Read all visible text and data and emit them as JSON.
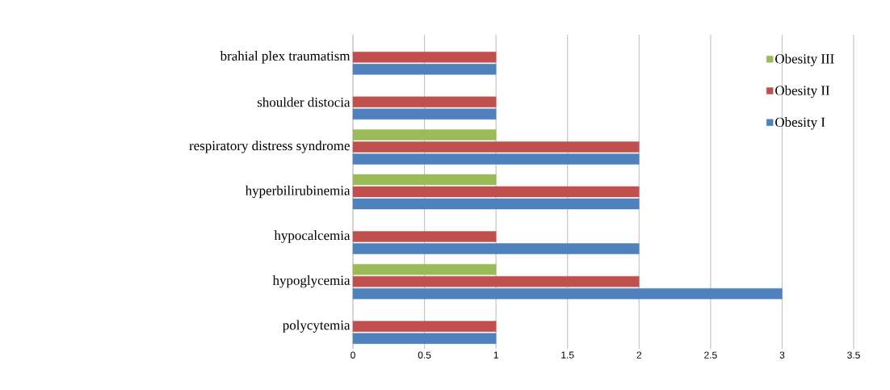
{
  "chart_data": {
    "type": "bar",
    "orientation": "horizontal",
    "categories": [
      "brahial plex traumatism",
      "shoulder distocia",
      "respiratory distress syndrome",
      "hyperbilirubinemia",
      "hypocalcemia",
      "hypoglycemia",
      "polycytemia"
    ],
    "series": [
      {
        "name": "Obesity I",
        "color": "#4f81bd",
        "values": [
          1,
          1,
          2,
          2,
          2,
          3,
          1
        ]
      },
      {
        "name": "Obesity II",
        "color": "#c0504d",
        "values": [
          1,
          1,
          2,
          2,
          1,
          2,
          1
        ]
      },
      {
        "name": "Obesity III",
        "color": "#9bbb59",
        "values": [
          null,
          null,
          1,
          1,
          null,
          1,
          null
        ]
      }
    ],
    "xlim": [
      0,
      3.5
    ],
    "xticks": [
      0,
      0.5,
      1,
      1.5,
      2,
      2.5,
      3,
      3.5
    ],
    "grid": "x",
    "legend": "top right"
  }
}
